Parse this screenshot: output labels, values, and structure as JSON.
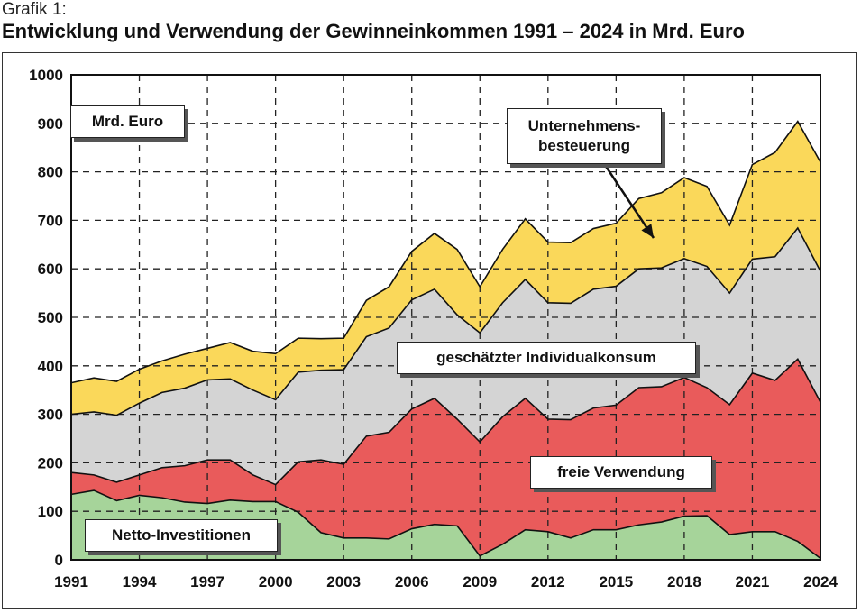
{
  "figure_label": "Grafik 1:",
  "title": "Entwicklung und Verwendung der Gewinneinkommen 1991 – 2024 in Mrd. Euro",
  "chart_data": {
    "type": "area",
    "stacked": true,
    "grid": true,
    "x": [
      1991,
      1992,
      1993,
      1994,
      1995,
      1996,
      1997,
      1998,
      1999,
      2000,
      2001,
      2002,
      2003,
      2004,
      2005,
      2006,
      2007,
      2008,
      2009,
      2010,
      2011,
      2012,
      2013,
      2014,
      2015,
      2016,
      2017,
      2018,
      2019,
      2020,
      2021,
      2022,
      2023,
      2024
    ],
    "xticks": [
      "1991",
      "1994",
      "1997",
      "2000",
      "2003",
      "2006",
      "2009",
      "2012",
      "2015",
      "2018",
      "2021",
      "2024"
    ],
    "yticks": [
      "0",
      "100",
      "200",
      "300",
      "400",
      "500",
      "600",
      "700",
      "800",
      "900",
      "1000"
    ],
    "ylim": [
      0,
      1000
    ],
    "unit_label": "Mrd. Euro",
    "series": [
      {
        "name": "Netto-Investitionen",
        "color": "#a6d49a",
        "values": [
          135,
          143,
          122,
          133,
          128,
          119,
          116,
          123,
          120,
          120,
          98,
          56,
          45,
          45,
          43,
          64,
          73,
          70,
          8,
          32,
          62,
          58,
          45,
          62,
          62,
          72,
          78,
          90,
          91,
          52,
          58,
          58,
          38,
          3
        ]
      },
      {
        "name": "freie Verwendung",
        "color": "#e95b5b",
        "values": [
          45,
          32,
          38,
          42,
          62,
          75,
          90,
          83,
          55,
          35,
          104,
          150,
          152,
          210,
          220,
          247,
          260,
          220,
          235,
          263,
          271,
          232,
          244,
          251,
          257,
          283,
          279,
          286,
          264,
          268,
          327,
          312,
          376,
          322
        ]
      },
      {
        "name": "geschätzter Individualkonsum",
        "color": "#d4d4d4",
        "values": [
          120,
          130,
          138,
          148,
          155,
          160,
          165,
          167,
          175,
          175,
          185,
          185,
          195,
          205,
          215,
          225,
          225,
          215,
          225,
          235,
          245,
          240,
          240,
          245,
          245,
          245,
          245,
          245,
          250,
          230,
          235,
          255,
          270,
          270
        ]
      },
      {
        "name": "Unternehmensbesteuerung",
        "color": "#fad85a",
        "values": [
          65,
          70,
          70,
          70,
          65,
          70,
          65,
          75,
          80,
          95,
          70,
          65,
          65,
          75,
          85,
          100,
          115,
          135,
          95,
          110,
          125,
          125,
          125,
          125,
          130,
          145,
          155,
          167,
          165,
          140,
          195,
          215,
          220,
          225
        ]
      }
    ],
    "annotations": {
      "unit_box": "Mrd. Euro",
      "steuer_line1": "Unternehmens-",
      "steuer_line2": "besteuerung",
      "konsum": "geschätzter Individualkonsum",
      "freie": "freie Verwendung",
      "netto": "Netto-Investitionen"
    }
  }
}
